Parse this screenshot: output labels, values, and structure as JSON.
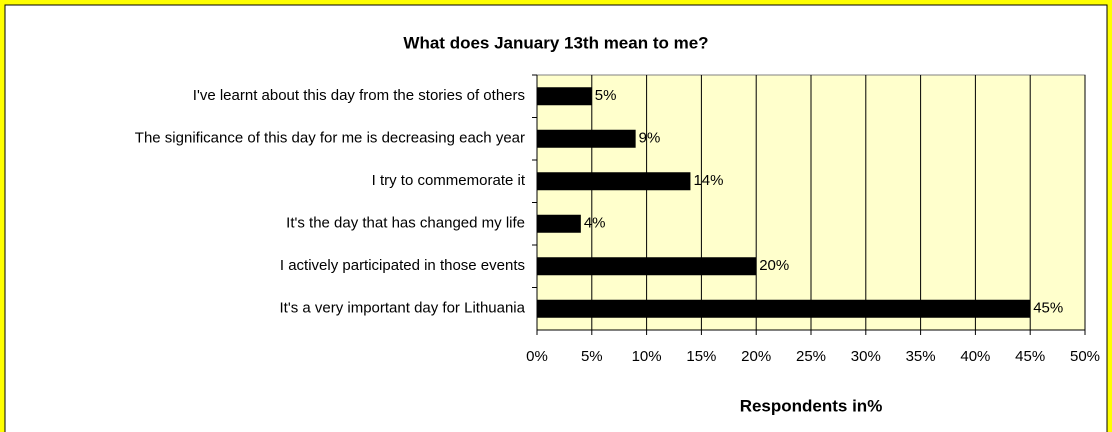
{
  "chart_data": {
    "type": "bar",
    "orientation": "horizontal",
    "title": "What does January 13th mean to me?",
    "xlabel": "Respondents in%",
    "categories": [
      "I've learnt about this day from the stories of others",
      "The significance of this day for me is decreasing each year",
      "I try to commemorate it",
      "It's the day that has changed my life",
      "I actively participated in those events",
      "It's a very important day for Lithuania"
    ],
    "values": [
      5,
      9,
      14,
      4,
      20,
      45
    ],
    "value_labels": [
      "5%",
      "9%",
      "14%",
      "4%",
      "20%",
      "45%"
    ],
    "color": "#000000",
    "xlim": [
      0,
      50
    ],
    "xticks": [
      {
        "value": 0,
        "label": "0%"
      },
      {
        "value": 5,
        "label": "5%"
      },
      {
        "value": 10,
        "label": "10%"
      },
      {
        "value": 15,
        "label": "15%"
      },
      {
        "value": 20,
        "label": "20%"
      },
      {
        "value": 25,
        "label": "25%"
      },
      {
        "value": 30,
        "label": "30%"
      },
      {
        "value": 35,
        "label": "35%"
      },
      {
        "value": 40,
        "label": "40%"
      },
      {
        "value": 45,
        "label": "45%"
      },
      {
        "value": 50,
        "label": "50%"
      }
    ],
    "grid": true
  }
}
